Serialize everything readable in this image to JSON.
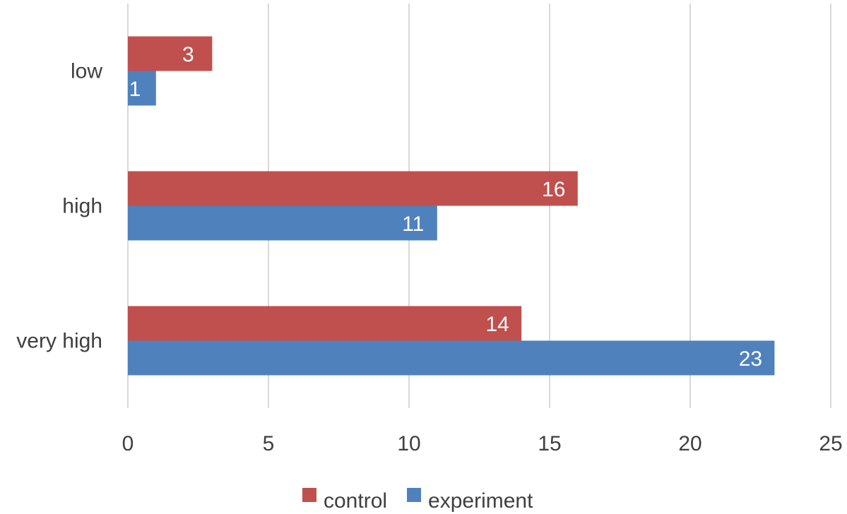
{
  "chart_data": {
    "type": "bar",
    "orientation": "horizontal",
    "categories": [
      "low",
      "high",
      "very high"
    ],
    "series": [
      {
        "name": "control",
        "values": [
          3,
          16,
          14
        ],
        "color": "#c0504d"
      },
      {
        "name": "experiment",
        "values": [
          1,
          11,
          23
        ],
        "color": "#4f81bd"
      }
    ],
    "xlim": [
      0,
      25
    ],
    "xticks": [
      "0",
      "5",
      "10",
      "15",
      "20",
      "25"
    ],
    "grid": true,
    "legend_position": "bottom",
    "data_labels": true
  }
}
